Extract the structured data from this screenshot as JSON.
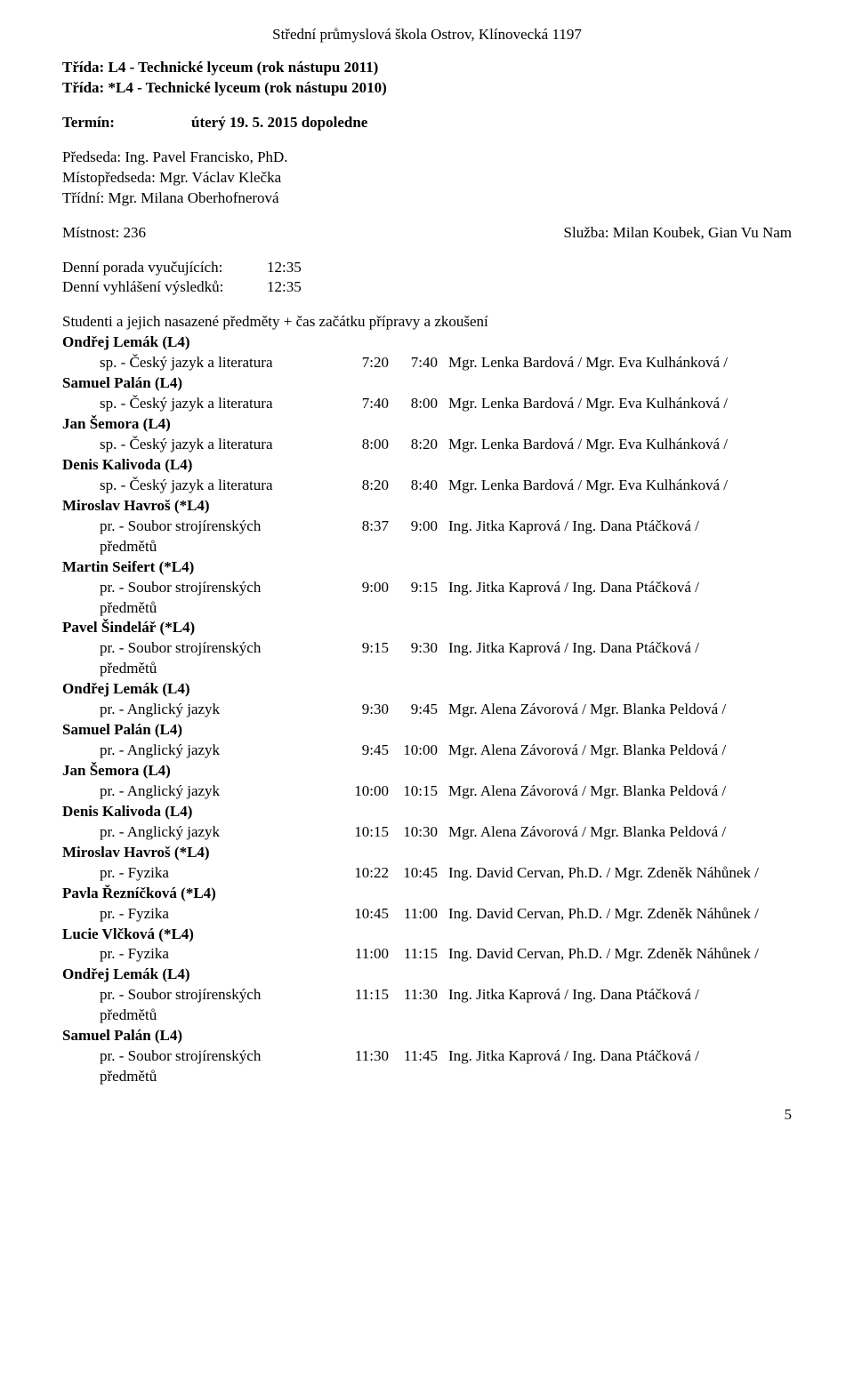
{
  "header": {
    "school": "Střední průmyslová škola Ostrov, Klínovecká 1197"
  },
  "classes": {
    "line1_label": "Třída:",
    "line1_value": "L4 - Technické lyceum   (rok nástupu 2011)",
    "line2_label": "Třída:",
    "line2_value": "*L4 - Technické lyceum   (rok nástupu 2010)"
  },
  "term": {
    "label": "Termín:",
    "value": "úterý   19. 5.  2015   dopoledne"
  },
  "head": {
    "chair_label": "Předseda: ",
    "chair_value": "Ing. Pavel Francisko, PhD.",
    "vice_label": "Místopředseda: ",
    "vice_value": "Mgr. Václav Klečka",
    "class_label": "Třídní: ",
    "class_value": "Mgr. Milana Oberhofnerová"
  },
  "room": {
    "label": "Místnost: ",
    "value": "236",
    "service_label": "Služba: ",
    "service_value": "Milan Koubek, Gian Vu Nam"
  },
  "timing": {
    "meeting_label": "Denní porada vyučujících:",
    "meeting_value": "12:35",
    "results_label": "Denní vyhlášení výsledků:",
    "results_value": "12:35"
  },
  "list_heading": "Studenti a jejich nasazené předměty + čas začátku přípravy a zkoušení",
  "entries": [
    {
      "student": "Ondřej Lemák   (L4)",
      "subj": "sp. - Český jazyk a literatura",
      "t1": "7:20",
      "t2": "7:40",
      "exam": "Mgr. Lenka Bardová / Mgr. Eva Kulhánková /"
    },
    {
      "student": "Samuel Palán   (L4)",
      "subj": "sp. - Český jazyk a literatura",
      "t1": "7:40",
      "t2": "8:00",
      "exam": "Mgr. Lenka Bardová / Mgr. Eva Kulhánková /"
    },
    {
      "student": "Jan Šemora   (L4)",
      "subj": "sp. - Český jazyk a literatura",
      "t1": "8:00",
      "t2": "8:20",
      "exam": "Mgr. Lenka Bardová / Mgr. Eva Kulhánková /"
    },
    {
      "student": "Denis Kalivoda   (L4)",
      "subj": "sp. - Český jazyk a literatura",
      "t1": "8:20",
      "t2": "8:40",
      "exam": "Mgr. Lenka Bardová / Mgr. Eva Kulhánková /"
    },
    {
      "student": "Miroslav Havroš   (*L4)",
      "subj": "pr. - Soubor strojírenských předmětů",
      "t1": "8:37",
      "t2": "9:00",
      "exam": "Ing. Jitka Kaprová / Ing. Dana Ptáčková /"
    },
    {
      "student": "Martin Seifert   (*L4)",
      "subj": "pr. - Soubor strojírenských předmětů",
      "t1": "9:00",
      "t2": "9:15",
      "exam": "Ing. Jitka Kaprová / Ing. Dana Ptáčková /"
    },
    {
      "student": "Pavel Šindelář   (*L4)",
      "subj": "pr. - Soubor strojírenských předmětů",
      "t1": "9:15",
      "t2": "9:30",
      "exam": "Ing. Jitka Kaprová / Ing. Dana Ptáčková /"
    },
    {
      "student": "Ondřej Lemák   (L4)",
      "subj": "pr. - Anglický jazyk",
      "t1": "9:30",
      "t2": "9:45",
      "exam": "Mgr. Alena Závorová / Mgr. Blanka Peldová /"
    },
    {
      "student": "Samuel Palán   (L4)",
      "subj": "pr. - Anglický jazyk",
      "t1": "9:45",
      "t2": "10:00",
      "exam": "Mgr. Alena Závorová / Mgr. Blanka Peldová /"
    },
    {
      "student": "Jan Šemora   (L4)",
      "subj": "pr. - Anglický jazyk",
      "t1": "10:00",
      "t2": "10:15",
      "exam": "Mgr. Alena Závorová / Mgr. Blanka Peldová /"
    },
    {
      "student": "Denis Kalivoda   (L4)",
      "subj": "pr. - Anglický jazyk",
      "t1": "10:15",
      "t2": "10:30",
      "exam": "Mgr. Alena Závorová / Mgr. Blanka Peldová /"
    },
    {
      "student": "Miroslav Havroš   (*L4)",
      "subj": "pr. - Fyzika",
      "t1": "10:22",
      "t2": "10:45",
      "exam": "Ing. David Cervan, Ph.D. / Mgr. Zdeněk Náhůnek /"
    },
    {
      "student": "Pavla Řezníčková   (*L4)",
      "subj": "pr. - Fyzika",
      "t1": "10:45",
      "t2": "11:00",
      "exam": "Ing. David Cervan, Ph.D. / Mgr. Zdeněk Náhůnek /"
    },
    {
      "student": "Lucie Vlčková   (*L4)",
      "subj": "pr. - Fyzika",
      "t1": "11:00",
      "t2": "11:15",
      "exam": "Ing. David Cervan, Ph.D. / Mgr. Zdeněk Náhůnek /"
    },
    {
      "student": "Ondřej Lemák   (L4)",
      "subj": "pr. - Soubor strojírenských předmětů",
      "t1": "11:15",
      "t2": "11:30",
      "exam": "Ing. Jitka Kaprová / Ing. Dana Ptáčková /"
    },
    {
      "student": "Samuel Palán   (L4)",
      "subj": "pr. - Soubor strojírenských předmětů",
      "t1": "11:30",
      "t2": "11:45",
      "exam": "Ing. Jitka Kaprová / Ing. Dana Ptáčková /"
    }
  ],
  "page_number": "5"
}
